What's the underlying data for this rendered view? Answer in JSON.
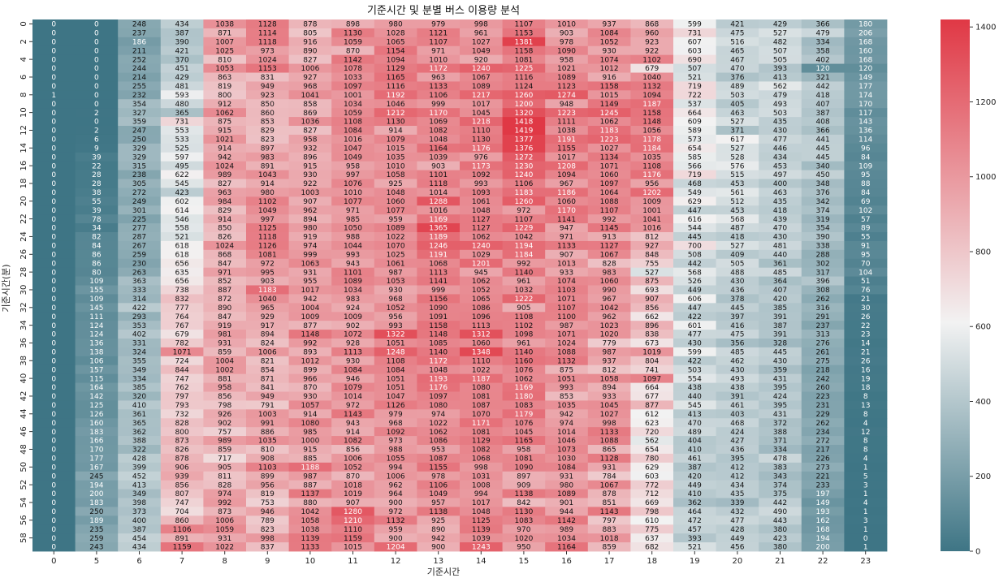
{
  "chart_data": {
    "type": "heatmap",
    "title": "기준시간 및 분별 버스 이용량 분석",
    "xlabel": "기준시간",
    "ylabel": "기준시간(분)",
    "x": [
      "0",
      "5",
      "6",
      "7",
      "8",
      "9",
      "10",
      "11",
      "12",
      "13",
      "14",
      "15",
      "16",
      "17",
      "18",
      "19",
      "20",
      "21",
      "22",
      "23"
    ],
    "y": [
      0,
      1,
      2,
      3,
      4,
      5,
      6,
      7,
      8,
      9,
      10,
      11,
      12,
      13,
      14,
      15,
      16,
      17,
      18,
      19,
      20,
      21,
      22,
      23,
      24,
      25,
      26,
      27,
      28,
      29,
      30,
      31,
      32,
      33,
      34,
      35,
      36,
      37,
      38,
      39,
      40,
      41,
      42,
      43,
      44,
      45,
      46,
      47,
      48,
      49,
      50,
      51,
      52,
      53,
      54,
      55,
      56,
      57,
      58,
      59
    ],
    "y_tick_labels": [
      "0",
      "2",
      "4",
      "6",
      "8",
      "10",
      "12",
      "14",
      "16",
      "18",
      "20",
      "22",
      "24",
      "26",
      "28",
      "30",
      "32",
      "34",
      "36",
      "38",
      "40",
      "42",
      "44",
      "46",
      "48",
      "50",
      "52",
      "54",
      "56",
      "58"
    ],
    "colorbar": {
      "min": 0,
      "max": 1420,
      "ticks": [
        0,
        200,
        400,
        600,
        800,
        1000,
        1200,
        1400
      ],
      "low_color": "#3e7585",
      "mid_color": "#f2f2f2",
      "high_color": "#e03845"
    },
    "values": [
      [
        0,
        0,
        248,
        434,
        1038,
        1128,
        878,
        898,
        980,
        979,
        998,
        1107,
        1010,
        937,
        868,
        599,
        421,
        429,
        366,
        180
      ],
      [
        0,
        0,
        237,
        387,
        871,
        1114,
        805,
        1130,
        1028,
        1121,
        961,
        1153,
        903,
        1084,
        960,
        731,
        475,
        527,
        479,
        206
      ],
      [
        0,
        0,
        186,
        390,
        1007,
        1118,
        916,
        1059,
        1065,
        1107,
        1027,
        1381,
        978,
        1052,
        923,
        607,
        516,
        482,
        334,
        168
      ],
      [
        0,
        0,
        211,
        421,
        1025,
        973,
        890,
        870,
        1154,
        971,
        1049,
        1158,
        1090,
        930,
        922,
        603,
        465,
        507,
        358,
        160
      ],
      [
        0,
        0,
        252,
        370,
        810,
        1024,
        827,
        1142,
        1094,
        1010,
        920,
        1081,
        958,
        1074,
        1102,
        690,
        467,
        505,
        402,
        168
      ],
      [
        0,
        0,
        244,
        451,
        1053,
        1153,
        1006,
        1078,
        1129,
        1172,
        1240,
        1225,
        1021,
        1012,
        679,
        507,
        470,
        393,
        120,
        120
      ],
      [
        0,
        0,
        214,
        429,
        863,
        831,
        927,
        1033,
        1165,
        963,
        1067,
        1116,
        1089,
        916,
        1040,
        521,
        376,
        413,
        321,
        149
      ],
      [
        0,
        0,
        255,
        481,
        819,
        949,
        968,
        1097,
        1116,
        1133,
        1089,
        1124,
        1123,
        1158,
        1132,
        719,
        489,
        562,
        442,
        177
      ],
      [
        1,
        0,
        232,
        593,
        800,
        923,
        1041,
        1001,
        1192,
        1106,
        1217,
        1260,
        1274,
        1015,
        1094,
        722,
        503,
        479,
        418,
        174
      ],
      [
        0,
        0,
        354,
        480,
        912,
        850,
        858,
        1034,
        1046,
        999,
        1017,
        1200,
        948,
        1149,
        1187,
        537,
        405,
        493,
        407,
        170
      ],
      [
        0,
        2,
        327,
        365,
        1062,
        860,
        869,
        1059,
        1212,
        1170,
        1045,
        1320,
        1223,
        1245,
        1158,
        664,
        463,
        503,
        387,
        117
      ],
      [
        0,
        0,
        359,
        731,
        875,
        853,
        1036,
        1108,
        1130,
        1069,
        1218,
        1418,
        1111,
        1062,
        1148,
        609,
        527,
        435,
        408,
        143
      ],
      [
        0,
        2,
        247,
        553,
        915,
        829,
        827,
        1084,
        914,
        1082,
        1110,
        1419,
        1038,
        1183,
        1056,
        589,
        371,
        430,
        366,
        136
      ],
      [
        0,
        6,
        250,
        533,
        1021,
        823,
        958,
        1016,
        1079,
        1048,
        1130,
        1377,
        1191,
        1223,
        1178,
        573,
        617,
        477,
        441,
        114
      ],
      [
        0,
        9,
        329,
        525,
        914,
        897,
        932,
        1047,
        1015,
        1164,
        1176,
        1376,
        1155,
        1027,
        1184,
        654,
        527,
        446,
        445,
        96
      ],
      [
        0,
        39,
        329,
        597,
        942,
        983,
        896,
        1049,
        1035,
        1039,
        976,
        1272,
        1017,
        1134,
        1035,
        585,
        528,
        434,
        445,
        84
      ],
      [
        0,
        22,
        315,
        495,
        1024,
        891,
        915,
        958,
        1010,
        903,
        1173,
        1230,
        1208,
        1071,
        1108,
        566,
        576,
        453,
        340,
        109
      ],
      [
        0,
        28,
        238,
        622,
        989,
        1043,
        930,
        997,
        1058,
        1101,
        1092,
        1240,
        1094,
        1060,
        1176,
        719,
        515,
        497,
        450,
        95
      ],
      [
        0,
        28,
        305,
        545,
        827,
        914,
        922,
        1076,
        925,
        1118,
        993,
        1106,
        967,
        1097,
        956,
        468,
        453,
        400,
        348,
        88
      ],
      [
        0,
        38,
        272,
        423,
        963,
        980,
        1003,
        1010,
        1048,
        1014,
        1093,
        1183,
        1186,
        1064,
        1202,
        549,
        561,
        463,
        376,
        84
      ],
      [
        0,
        55,
        249,
        602,
        984,
        1102,
        907,
        1077,
        1060,
        1288,
        1061,
        1260,
        1060,
        1088,
        1009,
        629,
        512,
        435,
        342,
        69
      ],
      [
        0,
        39,
        301,
        614,
        829,
        1049,
        962,
        971,
        1077,
        1016,
        1048,
        972,
        1170,
        1107,
        1001,
        447,
        453,
        418,
        374,
        102
      ],
      [
        0,
        78,
        225,
        546,
        914,
        997,
        894,
        985,
        959,
        1169,
        1127,
        1107,
        1141,
        992,
        1041,
        616,
        568,
        439,
        319,
        57
      ],
      [
        0,
        34,
        277,
        558,
        850,
        1125,
        980,
        1050,
        1089,
        1365,
        1127,
        1229,
        947,
        1145,
        1016,
        544,
        487,
        470,
        354,
        89
      ],
      [
        0,
        82,
        287,
        521,
        826,
        1118,
        919,
        988,
        1022,
        1189,
        1062,
        1042,
        971,
        913,
        812,
        445,
        418,
        430,
        390,
        55
      ],
      [
        0,
        84,
        267,
        618,
        1024,
        1126,
        974,
        1044,
        1070,
        1246,
        1240,
        1194,
        1133,
        1127,
        927,
        700,
        527,
        481,
        338,
        91
      ],
      [
        0,
        86,
        259,
        618,
        868,
        1081,
        999,
        993,
        1025,
        1191,
        1029,
        1184,
        907,
        1067,
        848,
        508,
        409,
        440,
        288,
        95
      ],
      [
        0,
        86,
        230,
        656,
        847,
        972,
        1063,
        943,
        1061,
        1068,
        1201,
        992,
        1013,
        828,
        755,
        442,
        505,
        361,
        302,
        70
      ],
      [
        0,
        80,
        263,
        635,
        971,
        995,
        931,
        1101,
        987,
        1113,
        945,
        1140,
        933,
        983,
        527,
        568,
        488,
        485,
        317,
        104
      ],
      [
        0,
        109,
        363,
        656,
        852,
        903,
        955,
        1089,
        1053,
        1141,
        1062,
        961,
        1074,
        1060,
        875,
        526,
        430,
        364,
        396,
        51
      ],
      [
        0,
        155,
        333,
        738,
        887,
        1183,
        1017,
        1034,
        930,
        999,
        1052,
        1032,
        1103,
        990,
        693,
        449,
        436,
        407,
        308,
        76
      ],
      [
        0,
        109,
        314,
        832,
        872,
        1040,
        942,
        983,
        968,
        1156,
        1065,
        1222,
        1071,
        967,
        907,
        606,
        378,
        420,
        262,
        21
      ],
      [
        0,
        145,
        422,
        777,
        890,
        965,
        1004,
        924,
        1052,
        1090,
        1086,
        905,
        1107,
        1042,
        856,
        447,
        445,
        385,
        316,
        30
      ],
      [
        0,
        111,
        293,
        764,
        847,
        929,
        1009,
        1009,
        956,
        1091,
        1096,
        1108,
        1100,
        962,
        662,
        422,
        397,
        391,
        291,
        26
      ],
      [
        0,
        124,
        353,
        767,
        919,
        917,
        877,
        902,
        993,
        1158,
        1113,
        1102,
        987,
        1023,
        896,
        601,
        416,
        387,
        237,
        22
      ],
      [
        0,
        124,
        402,
        679,
        981,
        894,
        1148,
        1072,
        1322,
        1148,
        1312,
        1098,
        1071,
        1020,
        838,
        477,
        475,
        391,
        313,
        23
      ],
      [
        0,
        136,
        331,
        782,
        931,
        824,
        992,
        928,
        1051,
        1085,
        1060,
        961,
        1024,
        779,
        673,
        430,
        356,
        328,
        276,
        14
      ],
      [
        0,
        138,
        324,
        1071,
        859,
        1006,
        893,
        1113,
        1248,
        1140,
        1348,
        1140,
        1088,
        987,
        1019,
        599,
        485,
        445,
        261,
        21
      ],
      [
        0,
        106,
        355,
        724,
        1004,
        821,
        1012,
        930,
        1108,
        1172,
        1110,
        1160,
        1132,
        937,
        804,
        422,
        462,
        430,
        275,
        26
      ],
      [
        0,
        157,
        349,
        844,
        1002,
        854,
        899,
        1084,
        1084,
        1048,
        1022,
        1076,
        875,
        812,
        741,
        503,
        430,
        359,
        218,
        16
      ],
      [
        0,
        115,
        334,
        747,
        881,
        871,
        966,
        946,
        1051,
        1193,
        1187,
        1062,
        1051,
        1058,
        1097,
        554,
        493,
        431,
        242,
        19
      ],
      [
        0,
        164,
        385,
        762,
        958,
        841,
        870,
        1079,
        1051,
        1176,
        1080,
        1169,
        993,
        894,
        664,
        438,
        438,
        395,
        260,
        18
      ],
      [
        0,
        142,
        320,
        797,
        856,
        949,
        930,
        1014,
        1047,
        1097,
        1081,
        1180,
        853,
        933,
        677,
        440,
        391,
        424,
        223,
        8
      ],
      [
        0,
        125,
        410,
        793,
        798,
        791,
        1057,
        972,
        1126,
        1080,
        1087,
        1083,
        1035,
        1045,
        877,
        545,
        461,
        395,
        231,
        13
      ],
      [
        0,
        126,
        361,
        732,
        926,
        1003,
        914,
        1143,
        979,
        974,
        1070,
        1179,
        942,
        1027,
        612,
        413,
        403,
        431,
        229,
        8
      ],
      [
        0,
        160,
        365,
        828,
        902,
        991,
        1080,
        943,
        968,
        1022,
        1171,
        1076,
        974,
        998,
        623,
        470,
        468,
        372,
        262,
        4
      ],
      [
        0,
        183,
        362,
        800,
        757,
        886,
        985,
        914,
        1092,
        1062,
        1081,
        1045,
        1014,
        1133,
        720,
        489,
        424,
        388,
        234,
        12
      ],
      [
        0,
        166,
        388,
        873,
        989,
        1035,
        1000,
        1082,
        973,
        1086,
        1129,
        1165,
        1046,
        1088,
        562,
        404,
        427,
        371,
        272,
        8
      ],
      [
        0,
        170,
        322,
        826,
        859,
        810,
        915,
        856,
        988,
        953,
        1082,
        958,
        1073,
        865,
        654,
        410,
        436,
        334,
        217,
        8
      ],
      [
        0,
        177,
        428,
        878,
        717,
        908,
        885,
        1006,
        1055,
        1087,
        1068,
        1081,
        1030,
        1128,
        780,
        461,
        395,
        478,
        226,
        4
      ],
      [
        0,
        167,
        399,
        906,
        905,
        1103,
        1188,
        1052,
        994,
        1155,
        998,
        1090,
        1084,
        931,
        629,
        387,
        412,
        383,
        273,
        1
      ],
      [
        0,
        245,
        452,
        939,
        811,
        899,
        987,
        870,
        1006,
        978,
        1031,
        897,
        931,
        784,
        603,
        420,
        412,
        343,
        221,
        5
      ],
      [
        0,
        194,
        413,
        856,
        828,
        956,
        887,
        1018,
        962,
        1106,
        1008,
        909,
        980,
        1067,
        772,
        449,
        434,
        374,
        233,
        3
      ],
      [
        0,
        200,
        349,
        807,
        974,
        819,
        1137,
        1019,
        964,
        1049,
        994,
        1138,
        1089,
        878,
        712,
        410,
        435,
        375,
        197,
        1
      ],
      [
        0,
        183,
        398,
        747,
        992,
        753,
        880,
        907,
        900,
        957,
        1017,
        842,
        901,
        851,
        669,
        362,
        339,
        442,
        149,
        4
      ],
      [
        0,
        250,
        373,
        704,
        873,
        946,
        1042,
        1280,
        972,
        1138,
        1048,
        1130,
        944,
        1143,
        798,
        464,
        432,
        490,
        193,
        1
      ],
      [
        0,
        189,
        400,
        860,
        1006,
        789,
        1058,
        1210,
        1132,
        925,
        1125,
        1083,
        1142,
        797,
        610,
        472,
        477,
        443,
        162,
        3
      ],
      [
        0,
        235,
        387,
        1106,
        1059,
        823,
        1038,
        1110,
        959,
        890,
        1139,
        970,
        989,
        883,
        775,
        457,
        428,
        380,
        168,
        1
      ],
      [
        0,
        259,
        454,
        891,
        931,
        998,
        1139,
        1159,
        900,
        942,
        1039,
        1020,
        1034,
        1018,
        637,
        393,
        449,
        423,
        194,
        0
      ],
      [
        0,
        243,
        434,
        1159,
        1022,
        837,
        1133,
        1015,
        1204,
        900,
        1243,
        950,
        1164,
        859,
        682,
        521,
        456,
        380,
        200,
        1
      ]
    ]
  }
}
